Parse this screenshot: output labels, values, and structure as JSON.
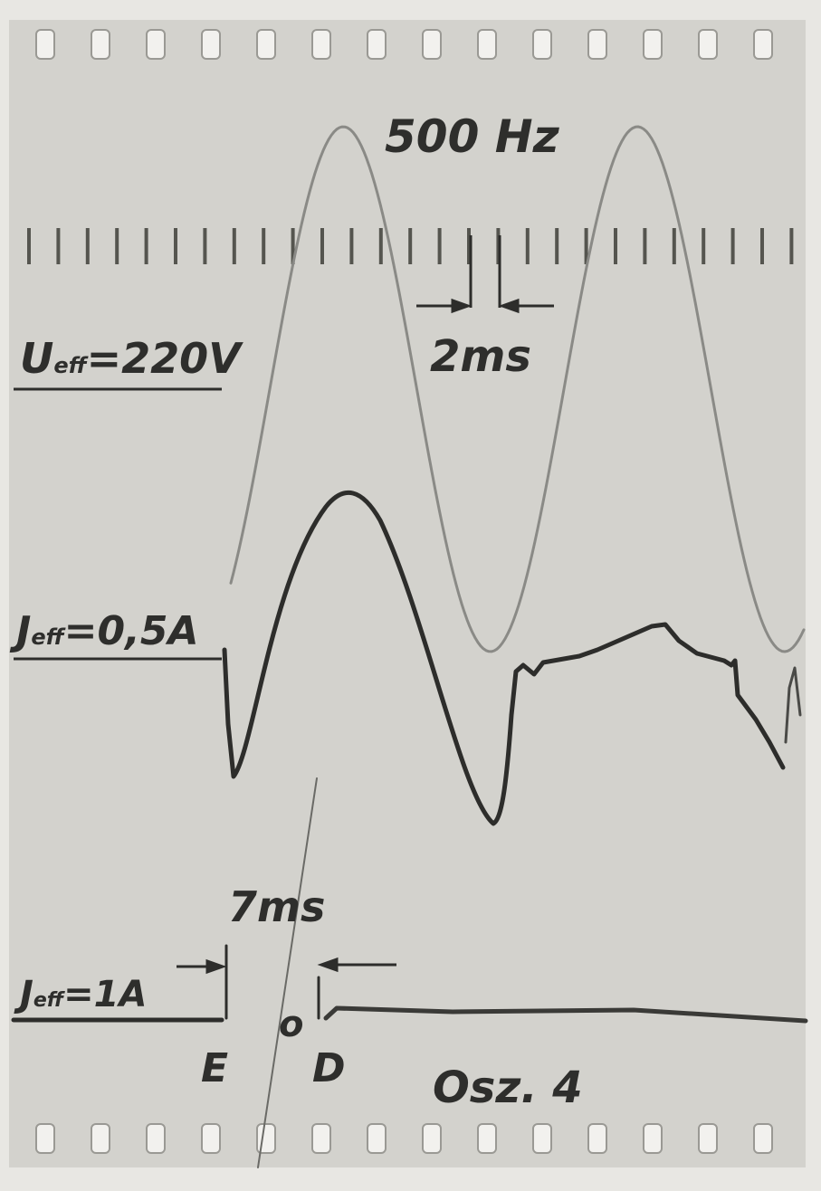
{
  "labels": {
    "frequency": "500 Hz",
    "period": "2ms",
    "voltage": {
      "symbol": "U",
      "subscript": "eff",
      "value": "=220V"
    },
    "current_1": {
      "symbol": "J",
      "subscript": "eff",
      "value": "=0,5A"
    },
    "delay": "7ms",
    "current_2": {
      "symbol": "J",
      "subscript": "eff",
      "value": "=1A"
    },
    "point_e": "E",
    "point_o": "o",
    "point_d": "D",
    "caption": "Osz. 4"
  }
}
